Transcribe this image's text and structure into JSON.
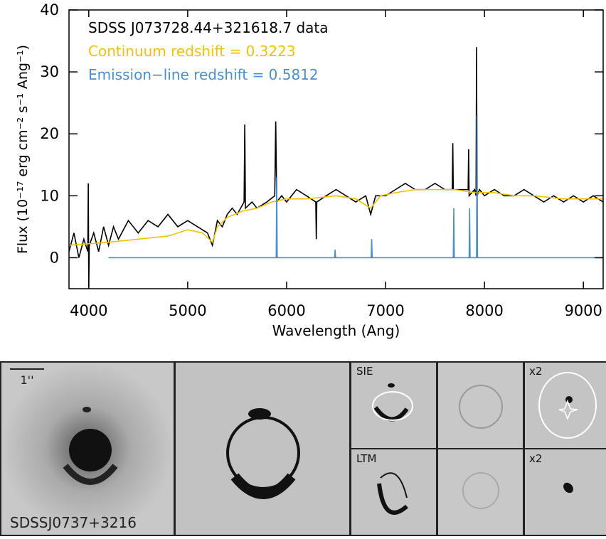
{
  "chart_data": {
    "type": "line",
    "xlabel": "Wavelength (Ang)",
    "ylabel": "Flux (10⁻¹⁷ erg cm⁻² s⁻¹ Ang⁻¹)",
    "xlim": [
      3800,
      9200
    ],
    "xticks": [
      4000,
      5000,
      6000,
      7000,
      8000,
      9000
    ],
    "ylim": [
      -5,
      40
    ],
    "yticks": [
      0,
      10,
      20,
      30,
      40
    ],
    "series": [
      {
        "name": "SDSS J073728.44+321618.7 data",
        "color": "#000000",
        "x": [
          3800,
          3850,
          3900,
          3950,
          3990,
          3995,
          4000,
          4005,
          4050,
          4100,
          4150,
          4200,
          4250,
          4300,
          4400,
          4500,
          4600,
          4700,
          4800,
          4900,
          5000,
          5100,
          5200,
          5250,
          5300,
          5350,
          5400,
          5450,
          5500,
          5570,
          5577,
          5584,
          5650,
          5700,
          5800,
          5880,
          5890,
          5900,
          5950,
          6000,
          6100,
          6200,
          6295,
          6300,
          6305,
          6400,
          6500,
          6600,
          6700,
          6800,
          6850,
          6900,
          7000,
          7100,
          7200,
          7300,
          7400,
          7500,
          7600,
          7675,
          7680,
          7685,
          7750,
          7835,
          7840,
          7845,
          7900,
          7915,
          7920,
          7925,
          7950,
          8000,
          8100,
          8200,
          8300,
          8400,
          8500,
          8600,
          8700,
          8800,
          8900,
          9000,
          9100,
          9200
        ],
        "values": [
          1,
          4,
          0,
          3,
          1,
          12,
          -5,
          2,
          4,
          1,
          5,
          2,
          5,
          3,
          6,
          4,
          6,
          5,
          7,
          5,
          6,
          5,
          4,
          2,
          6,
          5,
          7,
          8,
          7,
          9,
          21.5,
          8,
          9,
          8,
          9,
          10,
          22,
          9,
          10,
          9,
          11,
          10,
          9,
          3,
          9,
          10,
          11,
          10,
          9,
          10,
          7,
          10,
          10,
          11,
          12,
          11,
          11,
          12,
          11,
          11,
          18.5,
          11,
          11,
          11,
          17.5,
          10,
          11,
          10,
          34,
          10,
          11,
          10,
          11,
          10,
          10,
          11,
          10,
          9,
          10,
          9,
          10,
          9,
          10,
          9
        ]
      },
      {
        "name": "Continuum redshift = 0.3223",
        "color": "#f2c200",
        "x": [
          3800,
          4200,
          4500,
          4800,
          5000,
          5150,
          5250,
          5300,
          5400,
          5550,
          5700,
          5850,
          6000,
          6200,
          6500,
          6700,
          6850,
          6950,
          7100,
          7300,
          7500,
          7700,
          7900,
          8100,
          8300,
          8500,
          8800,
          9000,
          9200
        ],
        "values": [
          2,
          2.5,
          3,
          3.5,
          4.5,
          4,
          2.5,
          5,
          6.5,
          7.5,
          8,
          9,
          9.5,
          9.5,
          10,
          9.5,
          8,
          10,
          10.5,
          11,
          11,
          11,
          10.5,
          10.5,
          10,
          10,
          9.5,
          9.5,
          9.5
        ]
      },
      {
        "name": "Emission−line redshift = 0.5812",
        "color": "#4a8fd0",
        "x": [
          4200,
          5895,
          5900,
          5905,
          6485,
          6490,
          6495,
          6855,
          6860,
          6865,
          7685,
          7690,
          7695,
          7845,
          7850,
          7855,
          7920,
          7925,
          7930,
          9200
        ],
        "values": [
          0,
          0,
          13,
          0,
          0,
          1.3,
          0,
          0,
          3,
          0,
          0,
          8,
          0,
          0,
          8,
          0,
          0,
          23,
          0,
          0
        ]
      }
    ]
  },
  "panels": {
    "scale": "1''",
    "name": "SDSSJ0737+3216",
    "row1": "SIE",
    "row2": "LTM",
    "mag1": "x2",
    "mag2": "x2"
  }
}
